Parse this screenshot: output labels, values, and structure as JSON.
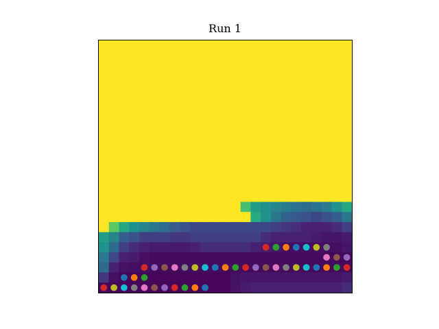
{
  "chart_data": {
    "type": "heatmap",
    "title": "Run 1",
    "xlabel": "",
    "ylabel": "",
    "grid": false,
    "colormap": "viridis",
    "color_range": [
      0,
      1
    ],
    "n_cols": 25,
    "n_rows": 25,
    "matrix": [
      [
        1,
        1,
        1,
        1,
        1,
        1,
        1,
        1,
        1,
        1,
        1,
        1,
        1,
        1,
        1,
        1,
        1,
        1,
        1,
        1,
        1,
        1,
        1,
        1,
        1
      ],
      [
        1,
        1,
        1,
        1,
        1,
        1,
        1,
        1,
        1,
        1,
        1,
        1,
        1,
        1,
        1,
        1,
        1,
        1,
        1,
        1,
        1,
        1,
        1,
        1,
        1
      ],
      [
        1,
        1,
        1,
        1,
        1,
        1,
        1,
        1,
        1,
        1,
        1,
        1,
        1,
        1,
        1,
        1,
        1,
        1,
        1,
        1,
        1,
        1,
        1,
        1,
        1
      ],
      [
        1,
        1,
        1,
        1,
        1,
        1,
        1,
        1,
        1,
        1,
        1,
        1,
        1,
        1,
        1,
        1,
        1,
        1,
        1,
        1,
        1,
        1,
        1,
        1,
        1
      ],
      [
        1,
        1,
        1,
        1,
        1,
        1,
        1,
        1,
        1,
        1,
        1,
        1,
        1,
        1,
        1,
        1,
        1,
        1,
        1,
        1,
        1,
        1,
        1,
        1,
        1
      ],
      [
        1,
        1,
        1,
        1,
        1,
        1,
        1,
        1,
        1,
        1,
        1,
        1,
        1,
        1,
        1,
        1,
        1,
        1,
        1,
        1,
        1,
        1,
        1,
        1,
        1
      ],
      [
        1,
        1,
        1,
        1,
        1,
        1,
        1,
        1,
        1,
        1,
        1,
        1,
        1,
        1,
        1,
        1,
        1,
        1,
        1,
        1,
        1,
        1,
        1,
        1,
        1
      ],
      [
        1,
        1,
        1,
        1,
        1,
        1,
        1,
        1,
        1,
        1,
        1,
        1,
        1,
        1,
        1,
        1,
        1,
        1,
        1,
        1,
        1,
        1,
        1,
        1,
        1
      ],
      [
        1,
        1,
        1,
        1,
        1,
        1,
        1,
        1,
        1,
        1,
        1,
        1,
        1,
        1,
        1,
        1,
        1,
        1,
        1,
        1,
        1,
        1,
        1,
        1,
        1
      ],
      [
        1,
        1,
        1,
        1,
        1,
        1,
        1,
        1,
        1,
        1,
        1,
        1,
        1,
        1,
        1,
        1,
        1,
        1,
        1,
        1,
        1,
        1,
        1,
        1,
        1
      ],
      [
        1,
        1,
        1,
        1,
        1,
        1,
        1,
        1,
        1,
        1,
        1,
        1,
        1,
        1,
        1,
        1,
        1,
        1,
        1,
        1,
        1,
        1,
        1,
        1,
        1
      ],
      [
        1,
        1,
        1,
        1,
        1,
        1,
        1,
        1,
        1,
        1,
        1,
        1,
        1,
        1,
        1,
        1,
        1,
        1,
        1,
        1,
        1,
        1,
        1,
        1,
        1
      ],
      [
        1,
        1,
        1,
        1,
        1,
        1,
        1,
        1,
        1,
        1,
        1,
        1,
        1,
        1,
        1,
        1,
        1,
        1,
        1,
        1,
        1,
        1,
        1,
        1,
        1
      ],
      [
        1,
        1,
        1,
        1,
        1,
        1,
        1,
        1,
        1,
        1,
        1,
        1,
        1,
        1,
        1,
        1,
        1,
        1,
        1,
        1,
        1,
        1,
        1,
        1,
        1
      ],
      [
        1,
        1,
        1,
        1,
        1,
        1,
        1,
        1,
        1,
        1,
        1,
        1,
        1,
        1,
        1,
        1,
        1,
        1,
        1,
        1,
        1,
        1,
        1,
        1,
        1
      ],
      [
        1,
        1,
        1,
        1,
        1,
        1,
        1,
        1,
        1,
        1,
        1,
        1,
        1,
        1,
        1,
        1,
        1,
        1,
        1,
        1,
        1,
        1,
        1,
        1,
        1
      ],
      [
        1,
        1,
        1,
        1,
        1,
        1,
        1,
        1,
        1,
        1,
        1,
        1,
        1,
        1,
        0.7,
        0.55,
        0.5,
        0.45,
        0.42,
        0.38,
        0.35,
        0.38,
        0.42,
        0.5,
        0.6
      ],
      [
        1,
        1,
        1,
        1,
        1,
        1,
        1,
        1,
        1,
        1,
        1,
        1,
        1,
        1,
        1,
        0.62,
        0.5,
        0.4,
        0.32,
        0.28,
        0.25,
        0.22,
        0.25,
        0.3,
        0.4
      ],
      [
        1,
        0.75,
        0.6,
        0.5,
        0.45,
        0.4,
        0.35,
        0.3,
        0.25,
        0.22,
        0.22,
        0.22,
        0.22,
        0.22,
        0.22,
        0.22,
        0.22,
        0.2,
        0.18,
        0.15,
        0.12,
        0.12,
        0.12,
        0.15,
        0.2
      ],
      [
        0.55,
        0.45,
        0.3,
        0.25,
        0.2,
        0.2,
        0.2,
        0.18,
        0.18,
        0.2,
        0.2,
        0.2,
        0.2,
        0.2,
        0.2,
        0.2,
        0.15,
        0.12,
        0.12,
        0.12,
        0.12,
        0.1,
        0.08,
        0.08,
        0.1
      ],
      [
        0.5,
        0.35,
        0.2,
        0.15,
        0.12,
        0.1,
        0.1,
        0.1,
        0.1,
        0.12,
        0.15,
        0.15,
        0.15,
        0.15,
        0.15,
        0.12,
        0.1,
        0.08,
        0.05,
        0.05,
        0.05,
        0.05,
        0.05,
        0.05,
        0.08
      ],
      [
        0.4,
        0.22,
        0.12,
        0.1,
        0.05,
        0.03,
        0.03,
        0.03,
        0.03,
        0.03,
        0.03,
        0.03,
        0.03,
        0.03,
        0.03,
        0.03,
        0.03,
        0.03,
        0.03,
        0.03,
        0.03,
        0.03,
        0.03,
        0.03,
        0.03
      ],
      [
        0.35,
        0.12,
        0.06,
        0.05,
        0.05,
        0.04,
        0.04,
        0.04,
        0.04,
        0.04,
        0.04,
        0.04,
        0.04,
        0.04,
        0.04,
        0.04,
        0.04,
        0.04,
        0.04,
        0.04,
        0.04,
        0.04,
        0.04,
        0.04,
        0.04
      ],
      [
        0.18,
        0.05,
        0.02,
        0.02,
        0.02,
        0.02,
        0.02,
        0.02,
        0.02,
        0.02,
        0.02,
        0.02,
        0.02,
        0.06,
        0.08,
        0.08,
        0.08,
        0.08,
        0.08,
        0.08,
        0.08,
        0.08,
        0.08,
        0.08,
        0.1
      ],
      [
        0.04,
        0.02,
        0.02,
        0.02,
        0.02,
        0.02,
        0.02,
        0.02,
        0.02,
        0.02,
        0.02,
        0.02,
        0.02,
        0.06,
        0.1,
        0.12,
        0.12,
        0.12,
        0.12,
        0.12,
        0.12,
        0.12,
        0.12,
        0.12,
        0.15
      ]
    ],
    "markers": [
      {
        "col": 16,
        "row": 20,
        "color": "#d62728"
      },
      {
        "col": 17,
        "row": 20,
        "color": "#2ca02c"
      },
      {
        "col": 18,
        "row": 20,
        "color": "#ff7f0e"
      },
      {
        "col": 19,
        "row": 20,
        "color": "#1f77b4"
      },
      {
        "col": 20,
        "row": 20,
        "color": "#17becf"
      },
      {
        "col": 21,
        "row": 20,
        "color": "#bcbd22"
      },
      {
        "col": 22,
        "row": 20,
        "color": "#7f7f7f"
      },
      {
        "col": 22,
        "row": 21,
        "color": "#e377c2"
      },
      {
        "col": 23,
        "row": 21,
        "color": "#8c564b"
      },
      {
        "col": 24,
        "row": 21,
        "color": "#9467bd"
      },
      {
        "col": 4,
        "row": 22,
        "color": "#d62728"
      },
      {
        "col": 5,
        "row": 22,
        "color": "#9467bd"
      },
      {
        "col": 6,
        "row": 22,
        "color": "#8c564b"
      },
      {
        "col": 7,
        "row": 22,
        "color": "#e377c2"
      },
      {
        "col": 8,
        "row": 22,
        "color": "#7f7f7f"
      },
      {
        "col": 9,
        "row": 22,
        "color": "#bcbd22"
      },
      {
        "col": 10,
        "row": 22,
        "color": "#17becf"
      },
      {
        "col": 11,
        "row": 22,
        "color": "#1f77b4"
      },
      {
        "col": 12,
        "row": 22,
        "color": "#ff7f0e"
      },
      {
        "col": 13,
        "row": 22,
        "color": "#2ca02c"
      },
      {
        "col": 14,
        "row": 22,
        "color": "#d62728"
      },
      {
        "col": 15,
        "row": 22,
        "color": "#9467bd"
      },
      {
        "col": 16,
        "row": 22,
        "color": "#8c564b"
      },
      {
        "col": 17,
        "row": 22,
        "color": "#e377c2"
      },
      {
        "col": 18,
        "row": 22,
        "color": "#7f7f7f"
      },
      {
        "col": 19,
        "row": 22,
        "color": "#bcbd22"
      },
      {
        "col": 20,
        "row": 22,
        "color": "#17becf"
      },
      {
        "col": 21,
        "row": 22,
        "color": "#1f77b4"
      },
      {
        "col": 22,
        "row": 22,
        "color": "#ff7f0e"
      },
      {
        "col": 23,
        "row": 22,
        "color": "#2ca02c"
      },
      {
        "col": 24,
        "row": 22,
        "color": "#d62728"
      },
      {
        "col": 2,
        "row": 23,
        "color": "#1f77b4"
      },
      {
        "col": 3,
        "row": 23,
        "color": "#ff7f0e"
      },
      {
        "col": 4,
        "row": 23,
        "color": "#2ca02c"
      },
      {
        "col": 0,
        "row": 24,
        "color": "#d62728"
      },
      {
        "col": 1,
        "row": 24,
        "color": "#bcbd22"
      },
      {
        "col": 2,
        "row": 24,
        "color": "#17becf"
      },
      {
        "col": 3,
        "row": 24,
        "color": "#7f7f7f"
      },
      {
        "col": 4,
        "row": 24,
        "color": "#e377c2"
      },
      {
        "col": 5,
        "row": 24,
        "color": "#8c564b"
      },
      {
        "col": 6,
        "row": 24,
        "color": "#9467bd"
      },
      {
        "col": 7,
        "row": 24,
        "color": "#d62728"
      },
      {
        "col": 8,
        "row": 24,
        "color": "#2ca02c"
      },
      {
        "col": 9,
        "row": 24,
        "color": "#ff7f0e"
      },
      {
        "col": 10,
        "row": 24,
        "color": "#1f77b4"
      }
    ]
  }
}
